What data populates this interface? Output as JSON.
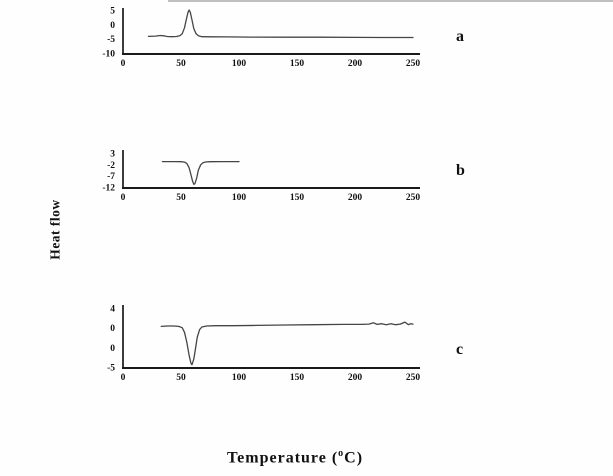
{
  "figure": {
    "ylabel": "Heat flow",
    "xlabel": {
      "pre": "Temperature (",
      "sup": "o",
      "post": "C)"
    },
    "curve_color": "#454545",
    "axis_color": "#1a1a1a",
    "text_color": "#111111"
  },
  "chart_data": [
    {
      "type": "line",
      "panel_label": "a",
      "xlabel": "Temperature (°C)",
      "ylabel": "Heat flow",
      "xlim": [
        0,
        250
      ],
      "ylim": [
        -10,
        5
      ],
      "x_tick_labels": [
        "0",
        "50",
        "100",
        "150",
        "200",
        "250"
      ],
      "y_tick_labels": [
        "5",
        "0",
        "-5",
        "-10"
      ],
      "baseline_value": -4.4,
      "peak": {
        "x": 57,
        "y": 5,
        "direction": "up"
      },
      "series": [
        {
          "name": "heat-flow-curve-a",
          "points": [
            [
              22,
              -4.2
            ],
            [
              28,
              -4.1
            ],
            [
              32,
              -3.9
            ],
            [
              35,
              -4.0
            ],
            [
              38,
              -4.25
            ],
            [
              42,
              -4.3
            ],
            [
              46,
              -4.25
            ],
            [
              49,
              -4.0
            ],
            [
              51,
              -3.3
            ],
            [
              53,
              -1.2
            ],
            [
              54.5,
              1.5
            ],
            [
              56,
              4.2
            ],
            [
              57,
              5.0
            ],
            [
              58,
              4.2
            ],
            [
              59.5,
              1.5
            ],
            [
              61,
              -1.5
            ],
            [
              63,
              -3.3
            ],
            [
              65,
              -4.0
            ],
            [
              68,
              -4.3
            ],
            [
              75,
              -4.35
            ],
            [
              90,
              -4.4
            ],
            [
              110,
              -4.45
            ],
            [
              140,
              -4.5
            ],
            [
              170,
              -4.5
            ],
            [
              200,
              -4.55
            ],
            [
              230,
              -4.6
            ],
            [
              250,
              -4.6
            ]
          ]
        }
      ]
    },
    {
      "type": "line",
      "panel_label": "b",
      "xlabel": "Temperature (°C)",
      "ylabel": "Heat flow",
      "xlim": [
        0,
        250
      ],
      "ylim": [
        -12,
        3
      ],
      "x_tick_labels": [
        "0",
        "50",
        "100",
        "150",
        "200",
        "250"
      ],
      "y_tick_labels": [
        "3",
        "-2",
        "-7",
        "-12"
      ],
      "baseline_value": -0.8,
      "peak": {
        "x": 61,
        "y": -10.8,
        "direction": "down"
      },
      "series": [
        {
          "name": "heat-flow-curve-b",
          "points": [
            [
              34,
              -0.8
            ],
            [
              40,
              -0.8
            ],
            [
              46,
              -0.8
            ],
            [
              50,
              -0.85
            ],
            [
              53,
              -1.0
            ],
            [
              55,
              -1.6
            ],
            [
              57,
              -3.5
            ],
            [
              58.5,
              -6.5
            ],
            [
              60,
              -9.5
            ],
            [
              61,
              -10.8
            ],
            [
              62,
              -10.6
            ],
            [
              63.5,
              -8.0
            ],
            [
              65,
              -4.5
            ],
            [
              67,
              -2.2
            ],
            [
              69,
              -1.3
            ],
            [
              71,
              -0.95
            ],
            [
              75,
              -0.85
            ],
            [
              85,
              -0.8
            ],
            [
              95,
              -0.8
            ],
            [
              100,
              -0.8
            ]
          ]
        }
      ]
    },
    {
      "type": "line",
      "panel_label": "c",
      "xlabel": "Temperature (°C)",
      "ylabel": "Heat flow",
      "xlim": [
        0,
        250
      ],
      "ylim": [
        -5,
        4
      ],
      "x_tick_labels": [
        "0",
        "50",
        "100",
        "150",
        "200",
        "250"
      ],
      "y_tick_labels": [
        "4",
        "0",
        "0",
        "-5"
      ],
      "baseline_value": 1.3,
      "peak": {
        "x": 59.5,
        "y": -4.65,
        "direction": "down"
      },
      "series": [
        {
          "name": "heat-flow-curve-c",
          "points": [
            [
              33,
              1.2
            ],
            [
              38,
              1.25
            ],
            [
              44,
              1.25
            ],
            [
              48,
              1.2
            ],
            [
              51,
              1.0
            ],
            [
              53,
              0.3
            ],
            [
              55,
              -1.2
            ],
            [
              57,
              -3.2
            ],
            [
              58.5,
              -4.4
            ],
            [
              59.5,
              -4.65
            ],
            [
              61,
              -3.8
            ],
            [
              62.5,
              -2.2
            ],
            [
              64,
              -0.5
            ],
            [
              66,
              0.7
            ],
            [
              68,
              1.1
            ],
            [
              72,
              1.25
            ],
            [
              80,
              1.3
            ],
            [
              95,
              1.3
            ],
            [
              115,
              1.35
            ],
            [
              140,
              1.4
            ],
            [
              165,
              1.45
            ],
            [
              190,
              1.5
            ],
            [
              205,
              1.5
            ],
            [
              212,
              1.55
            ],
            [
              216,
              1.75
            ],
            [
              219,
              1.5
            ],
            [
              223,
              1.6
            ],
            [
              227,
              1.45
            ],
            [
              231,
              1.6
            ],
            [
              235,
              1.45
            ],
            [
              239,
              1.55
            ],
            [
              243,
              1.85
            ],
            [
              246,
              1.45
            ],
            [
              248,
              1.6
            ],
            [
              250,
              1.55
            ]
          ]
        }
      ]
    }
  ]
}
